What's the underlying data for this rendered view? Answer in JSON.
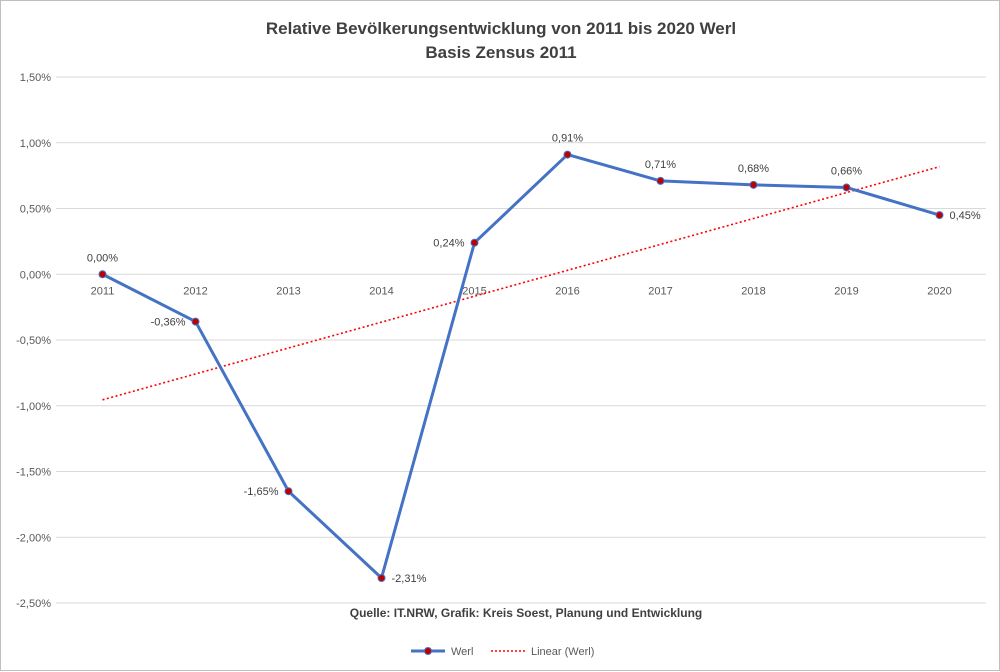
{
  "chart_data": {
    "type": "line",
    "title": "Relative Bevölkerungsentwicklung von 2011 bis 2020 Werl",
    "subtitle": "Basis Zensus 2011",
    "x": [
      "2011",
      "2012",
      "2013",
      "2014",
      "2015",
      "2016",
      "2017",
      "2018",
      "2019",
      "2020"
    ],
    "y_ticks": [
      "1,50%",
      "1,00%",
      "0,50%",
      "0,00%",
      "-0,50%",
      "-1,00%",
      "-1,50%",
      "-2,00%",
      "-2,50%"
    ],
    "y_tick_values": [
      1.5,
      1.0,
      0.5,
      0.0,
      -0.5,
      -1.0,
      -1.5,
      -2.0,
      -2.5
    ],
    "ylim": [
      -2.5,
      1.5
    ],
    "grid": true,
    "series": [
      {
        "name": "Werl",
        "values": [
          0.0,
          -0.36,
          -1.65,
          -2.31,
          0.24,
          0.91,
          0.71,
          0.68,
          0.66,
          0.45
        ],
        "labels": [
          "0,00%",
          "-0,36%",
          "-1,65%",
          "-2,31%",
          "0,24%",
          "0,91%",
          "0,71%",
          "0,68%",
          "0,66%",
          "0,45%"
        ],
        "line_color": "#4472c4",
        "marker_color": "#c00000"
      },
      {
        "name": "Linear (Werl)",
        "values": [
          -0.955,
          -0.758,
          -0.561,
          -0.364,
          -0.167,
          0.03,
          0.227,
          0.424,
          0.621,
          0.818
        ],
        "line_color": "#ff0000",
        "style": "dotted"
      }
    ],
    "annotation": "Quelle: IT.NRW, Grafik: Kreis Soest, Planung und Entwicklung",
    "legend_position": "bottom"
  }
}
